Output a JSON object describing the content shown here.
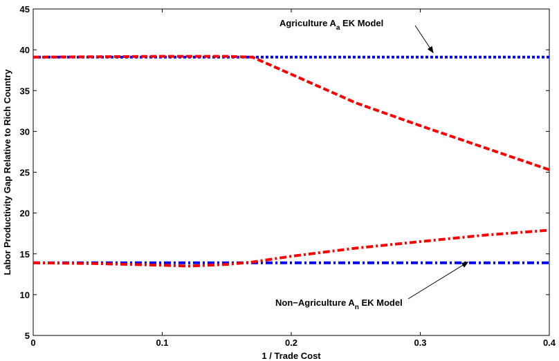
{
  "chart_data": {
    "type": "line",
    "xlabel": "1 / Trade Cost",
    "ylabel": "Labor Productivity Gap Relative to Rich Country",
    "xlim": [
      0,
      0.4
    ],
    "ylim": [
      5,
      45
    ],
    "x_ticks": [
      "0",
      "0.1",
      "0.2",
      "0.3",
      "0.4"
    ],
    "y_ticks": [
      "5",
      "10",
      "15",
      "20",
      "25",
      "30",
      "35",
      "40",
      "45"
    ],
    "grid": false,
    "series": [
      {
        "color": "#0000ff",
        "style": "dotted",
        "x": [
          0,
          0.4
        ],
        "y": [
          39.1,
          39.1
        ]
      },
      {
        "color": "#ff0000",
        "style": "dashed",
        "x": [
          0,
          0.05,
          0.1,
          0.15,
          0.17,
          0.2,
          0.25,
          0.3,
          0.35,
          0.4
        ],
        "y": [
          39.1,
          39.15,
          39.2,
          39.2,
          39.1,
          37.0,
          33.5,
          30.7,
          28.0,
          25.3
        ]
      },
      {
        "color": "#0000ff",
        "style": "dashdot",
        "x": [
          0,
          0.4
        ],
        "y": [
          13.9,
          13.9
        ]
      },
      {
        "color": "#ff0000",
        "style": "dashdot",
        "x": [
          0,
          0.05,
          0.1,
          0.12,
          0.15,
          0.17,
          0.2,
          0.25,
          0.3,
          0.35,
          0.4
        ],
        "y": [
          13.9,
          13.8,
          13.6,
          13.5,
          13.7,
          14.0,
          14.7,
          15.7,
          16.5,
          17.3,
          17.9
        ]
      }
    ],
    "annotations": [
      {
        "text_main": "Agriculture A",
        "text_sub": "a",
        "text_tail": " EK Model",
        "arrow_to": [
          0.31,
          39.3
        ]
      },
      {
        "text_main": "Non−Agriculture A",
        "text_sub": "n",
        "text_tail": " EK Model",
        "arrow_to": [
          0.337,
          14.0
        ]
      }
    ]
  }
}
